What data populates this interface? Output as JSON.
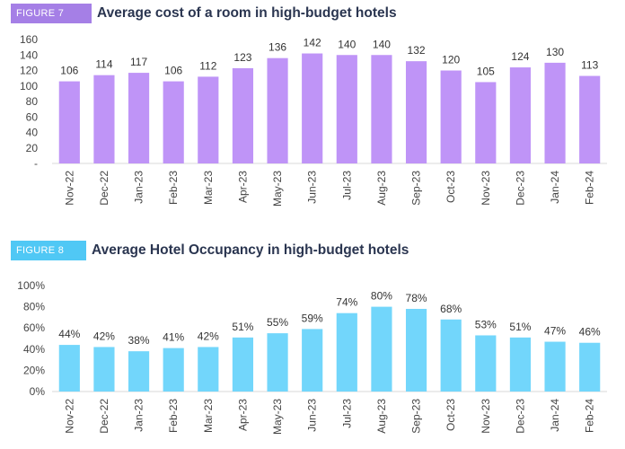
{
  "chart_data": [
    {
      "type": "bar",
      "figure_label": "FIGURE 7",
      "title": "Average cost of a room in high-budget hotels",
      "categories": [
        "Nov-22",
        "Dec-22",
        "Jan-23",
        "Feb-23",
        "Mar-23",
        "Apr-23",
        "May-23",
        "Jun-23",
        "Jul-23",
        "Aug-23",
        "Sep-23",
        "Oct-23",
        "Nov-23",
        "Dec-23",
        "Jan-24",
        "Feb-24"
      ],
      "values": [
        106,
        114,
        117,
        106,
        112,
        123,
        136,
        142,
        140,
        140,
        132,
        120,
        105,
        124,
        130,
        113
      ],
      "data_labels": [
        "106",
        "114",
        "117",
        "106",
        "112",
        "123",
        "136",
        "142",
        "140",
        "140",
        "132",
        "120",
        "105",
        "124",
        "130",
        "113"
      ],
      "yticks": [
        "-",
        "20",
        "40",
        "60",
        "80",
        "100",
        "120",
        "140",
        "160"
      ],
      "ylim": [
        0,
        160
      ],
      "xlabel": "",
      "ylabel": "",
      "bar_color": "#bf94f7",
      "tag_color": "#a57fe6"
    },
    {
      "type": "bar",
      "figure_label": "FIGURE 8",
      "title": "Average Hotel Occupancy in high-budget hotels",
      "categories": [
        "Nov-22",
        "Dec-22",
        "Jan-23",
        "Feb-23",
        "Mar-23",
        "Apr-23",
        "May-23",
        "Jun-23",
        "Jul-23",
        "Aug-23",
        "Sep-23",
        "Oct-23",
        "Nov-23",
        "Dec-23",
        "Jan-24",
        "Feb-24"
      ],
      "values": [
        44,
        42,
        38,
        41,
        42,
        51,
        55,
        59,
        74,
        80,
        78,
        68,
        53,
        51,
        47,
        46
      ],
      "data_labels": [
        "44%",
        "42%",
        "38%",
        "41%",
        "42%",
        "51%",
        "55%",
        "59%",
        "74%",
        "80%",
        "78%",
        "68%",
        "53%",
        "51%",
        "47%",
        "46%"
      ],
      "yticks": [
        "0%",
        "20%",
        "40%",
        "60%",
        "80%",
        "100%"
      ],
      "ylim": [
        0,
        100
      ],
      "xlabel": "",
      "ylabel": "",
      "bar_color": "#72d6fb",
      "tag_color": "#50c8f5"
    }
  ]
}
